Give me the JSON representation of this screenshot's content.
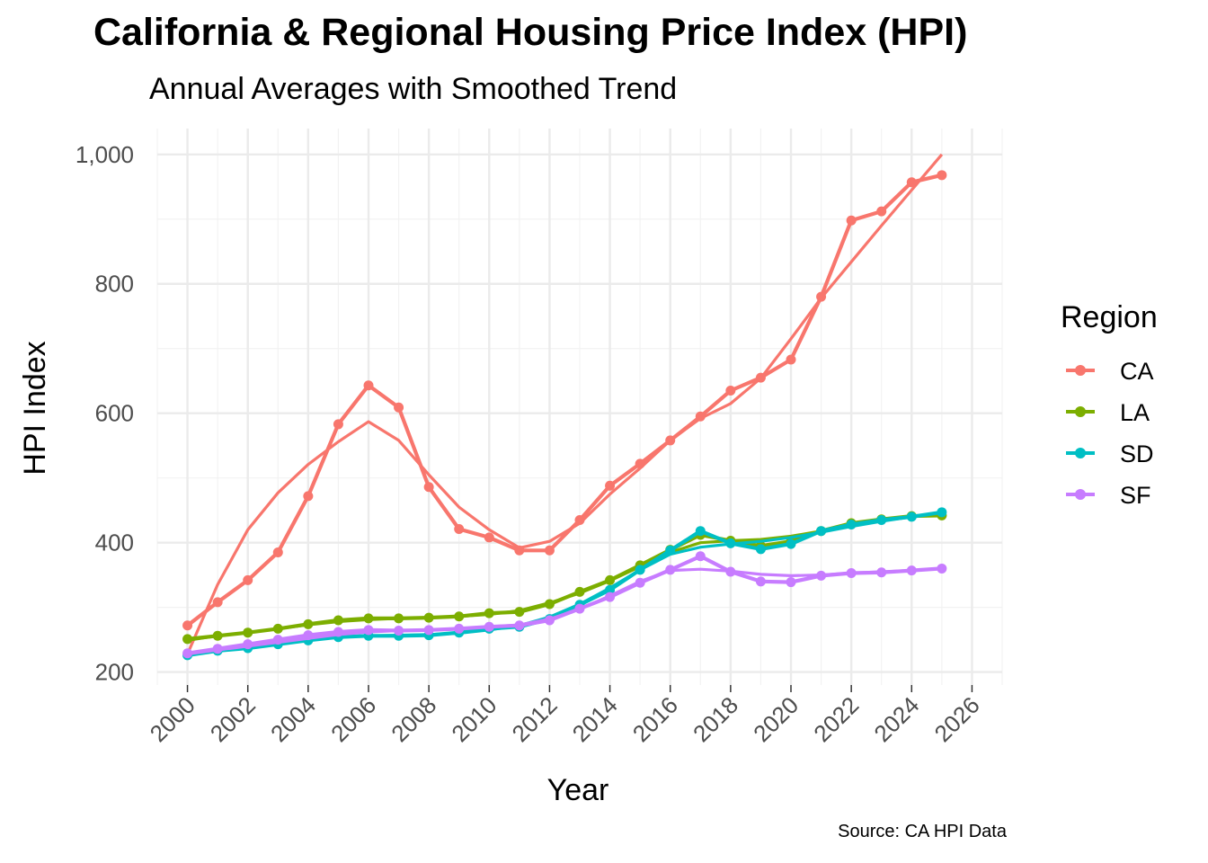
{
  "chart_data": {
    "type": "line",
    "title": "California & Regional Housing Price Index (HPI)",
    "subtitle": "Annual Averages with Smoothed Trend",
    "caption": "Source: CA HPI Data",
    "xlabel": "Year",
    "ylabel": "HPI Index",
    "xlim": [
      1999,
      2027
    ],
    "ylim": [
      200,
      1000
    ],
    "x_ticks": [
      2000,
      2002,
      2004,
      2006,
      2008,
      2010,
      2012,
      2014,
      2016,
      2018,
      2020,
      2022,
      2024,
      2026
    ],
    "y_ticks": [
      200,
      400,
      600,
      800,
      1000
    ],
    "y_tick_labels": [
      "200",
      "400",
      "600",
      "800",
      "1,000"
    ],
    "grid": true,
    "legend": {
      "title": "Region",
      "position": "right"
    },
    "x": [
      2000,
      2001,
      2002,
      2003,
      2004,
      2005,
      2006,
      2007,
      2008,
      2009,
      2010,
      2011,
      2012,
      2013,
      2014,
      2015,
      2016,
      2017,
      2018,
      2019,
      2020,
      2021,
      2022,
      2023,
      2024,
      2025
    ],
    "series": [
      {
        "name": "CA",
        "color": "#F8766D",
        "values": [
          272,
          308,
          342,
          385,
          472,
          583,
          643,
          609,
          486,
          421,
          408,
          388,
          388,
          435,
          488,
          522,
          558,
          595,
          635,
          655,
          683,
          780,
          898,
          912,
          957,
          968
        ],
        "smooth": [
          228,
          335,
          420,
          477,
          521,
          556,
          587,
          558,
          505,
          455,
          420,
          392,
          402,
          430,
          475,
          515,
          558,
          592,
          615,
          654,
          715,
          778,
          834,
          890,
          945,
          1000
        ]
      },
      {
        "name": "LA",
        "color": "#7CAE00",
        "values": [
          251,
          256,
          261,
          267,
          274,
          280,
          283,
          283,
          284,
          286,
          291,
          293,
          305,
          324,
          342,
          365,
          389,
          412,
          403,
          395,
          402,
          418,
          430,
          436,
          441,
          442
        ],
        "smooth": [
          249,
          256,
          261,
          267,
          273,
          278,
          281,
          283,
          284,
          286,
          289,
          295,
          307,
          322,
          341,
          363,
          385,
          400,
          403,
          405,
          410,
          418,
          428,
          435,
          440,
          444
        ]
      },
      {
        "name": "SD",
        "color": "#00BFC4",
        "values": [
          226,
          233,
          237,
          243,
          249,
          254,
          256,
          256,
          257,
          261,
          267,
          270,
          282,
          304,
          327,
          358,
          388,
          418,
          399,
          390,
          398,
          418,
          428,
          435,
          440,
          447
        ],
        "smooth": [
          228,
          234,
          239,
          245,
          250,
          254,
          256,
          257,
          258,
          260,
          265,
          272,
          285,
          305,
          330,
          358,
          382,
          393,
          398,
          402,
          408,
          416,
          425,
          433,
          440,
          447
        ]
      },
      {
        "name": "SF",
        "color": "#C77CFF",
        "values": [
          229,
          236,
          243,
          250,
          257,
          262,
          265,
          264,
          265,
          267,
          270,
          272,
          280,
          298,
          316,
          338,
          358,
          379,
          355,
          340,
          339,
          349,
          353,
          354,
          357,
          360
        ],
        "smooth": [
          228,
          234,
          240,
          246,
          252,
          258,
          262,
          264,
          265,
          267,
          270,
          273,
          282,
          297,
          318,
          340,
          357,
          359,
          356,
          351,
          349,
          350,
          353,
          355,
          357,
          360
        ]
      }
    ]
  }
}
